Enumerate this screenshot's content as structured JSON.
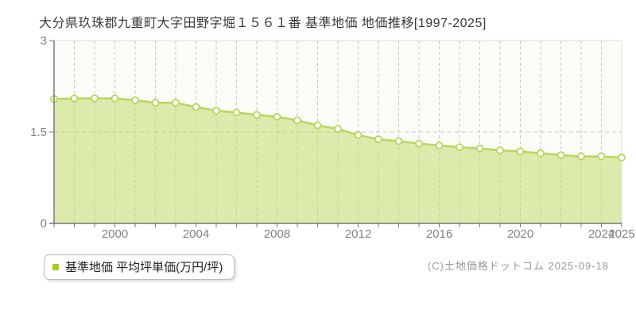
{
  "title": "大分県玖珠郡九重町大字田野字堀１５６１番 基準地価 地価推移[1997-2025]",
  "legend": {
    "label": "基準地価 平均坪単価(万円/坪)",
    "marker_color": "#a2ce1c"
  },
  "footer": {
    "copyright": "(C)土地価格ドットコム 2025-09-18"
  },
  "chart_data": {
    "type": "area",
    "title": "大分県玖珠郡九重町大字田野字堀１５６１番 基準地価 地価推移[1997-2025]",
    "series_name": "基準地価 平均坪単価(万円/坪)",
    "x": [
      1997,
      1998,
      1999,
      2000,
      2001,
      2002,
      2003,
      2004,
      2005,
      2006,
      2007,
      2008,
      2009,
      2010,
      2011,
      2012,
      2013,
      2014,
      2015,
      2016,
      2017,
      2018,
      2019,
      2020,
      2021,
      2022,
      2023,
      2024,
      2025
    ],
    "values": [
      2.04,
      2.05,
      2.05,
      2.05,
      2.02,
      1.98,
      1.98,
      1.91,
      1.85,
      1.82,
      1.78,
      1.75,
      1.69,
      1.61,
      1.55,
      1.45,
      1.38,
      1.35,
      1.31,
      1.28,
      1.25,
      1.23,
      1.2,
      1.18,
      1.15,
      1.12,
      1.1,
      1.1,
      1.08
    ],
    "xlabel": "",
    "ylabel": "平均坪単価(万円/坪)",
    "ylim": [
      0,
      3
    ],
    "yticks": [
      0,
      1.5,
      3
    ],
    "ytick_labels": [
      "0",
      "1.5",
      "3"
    ],
    "xticks_labeled": [
      2000,
      2004,
      2008,
      2012,
      2016,
      2020,
      2024,
      2025
    ],
    "grid": "dashed-vertical-per-year-and-mid-horizontal",
    "legend_position": "bottom-left",
    "colors": {
      "line": "#b9d65a",
      "fill": "#c3dc6e",
      "marker_fill": "#ffffff",
      "grid": "#c8c8c8",
      "axis": "#787878",
      "tick_text": "#828282",
      "plot_bg": "#fbfbf8",
      "plot_border": "#dedede"
    }
  }
}
